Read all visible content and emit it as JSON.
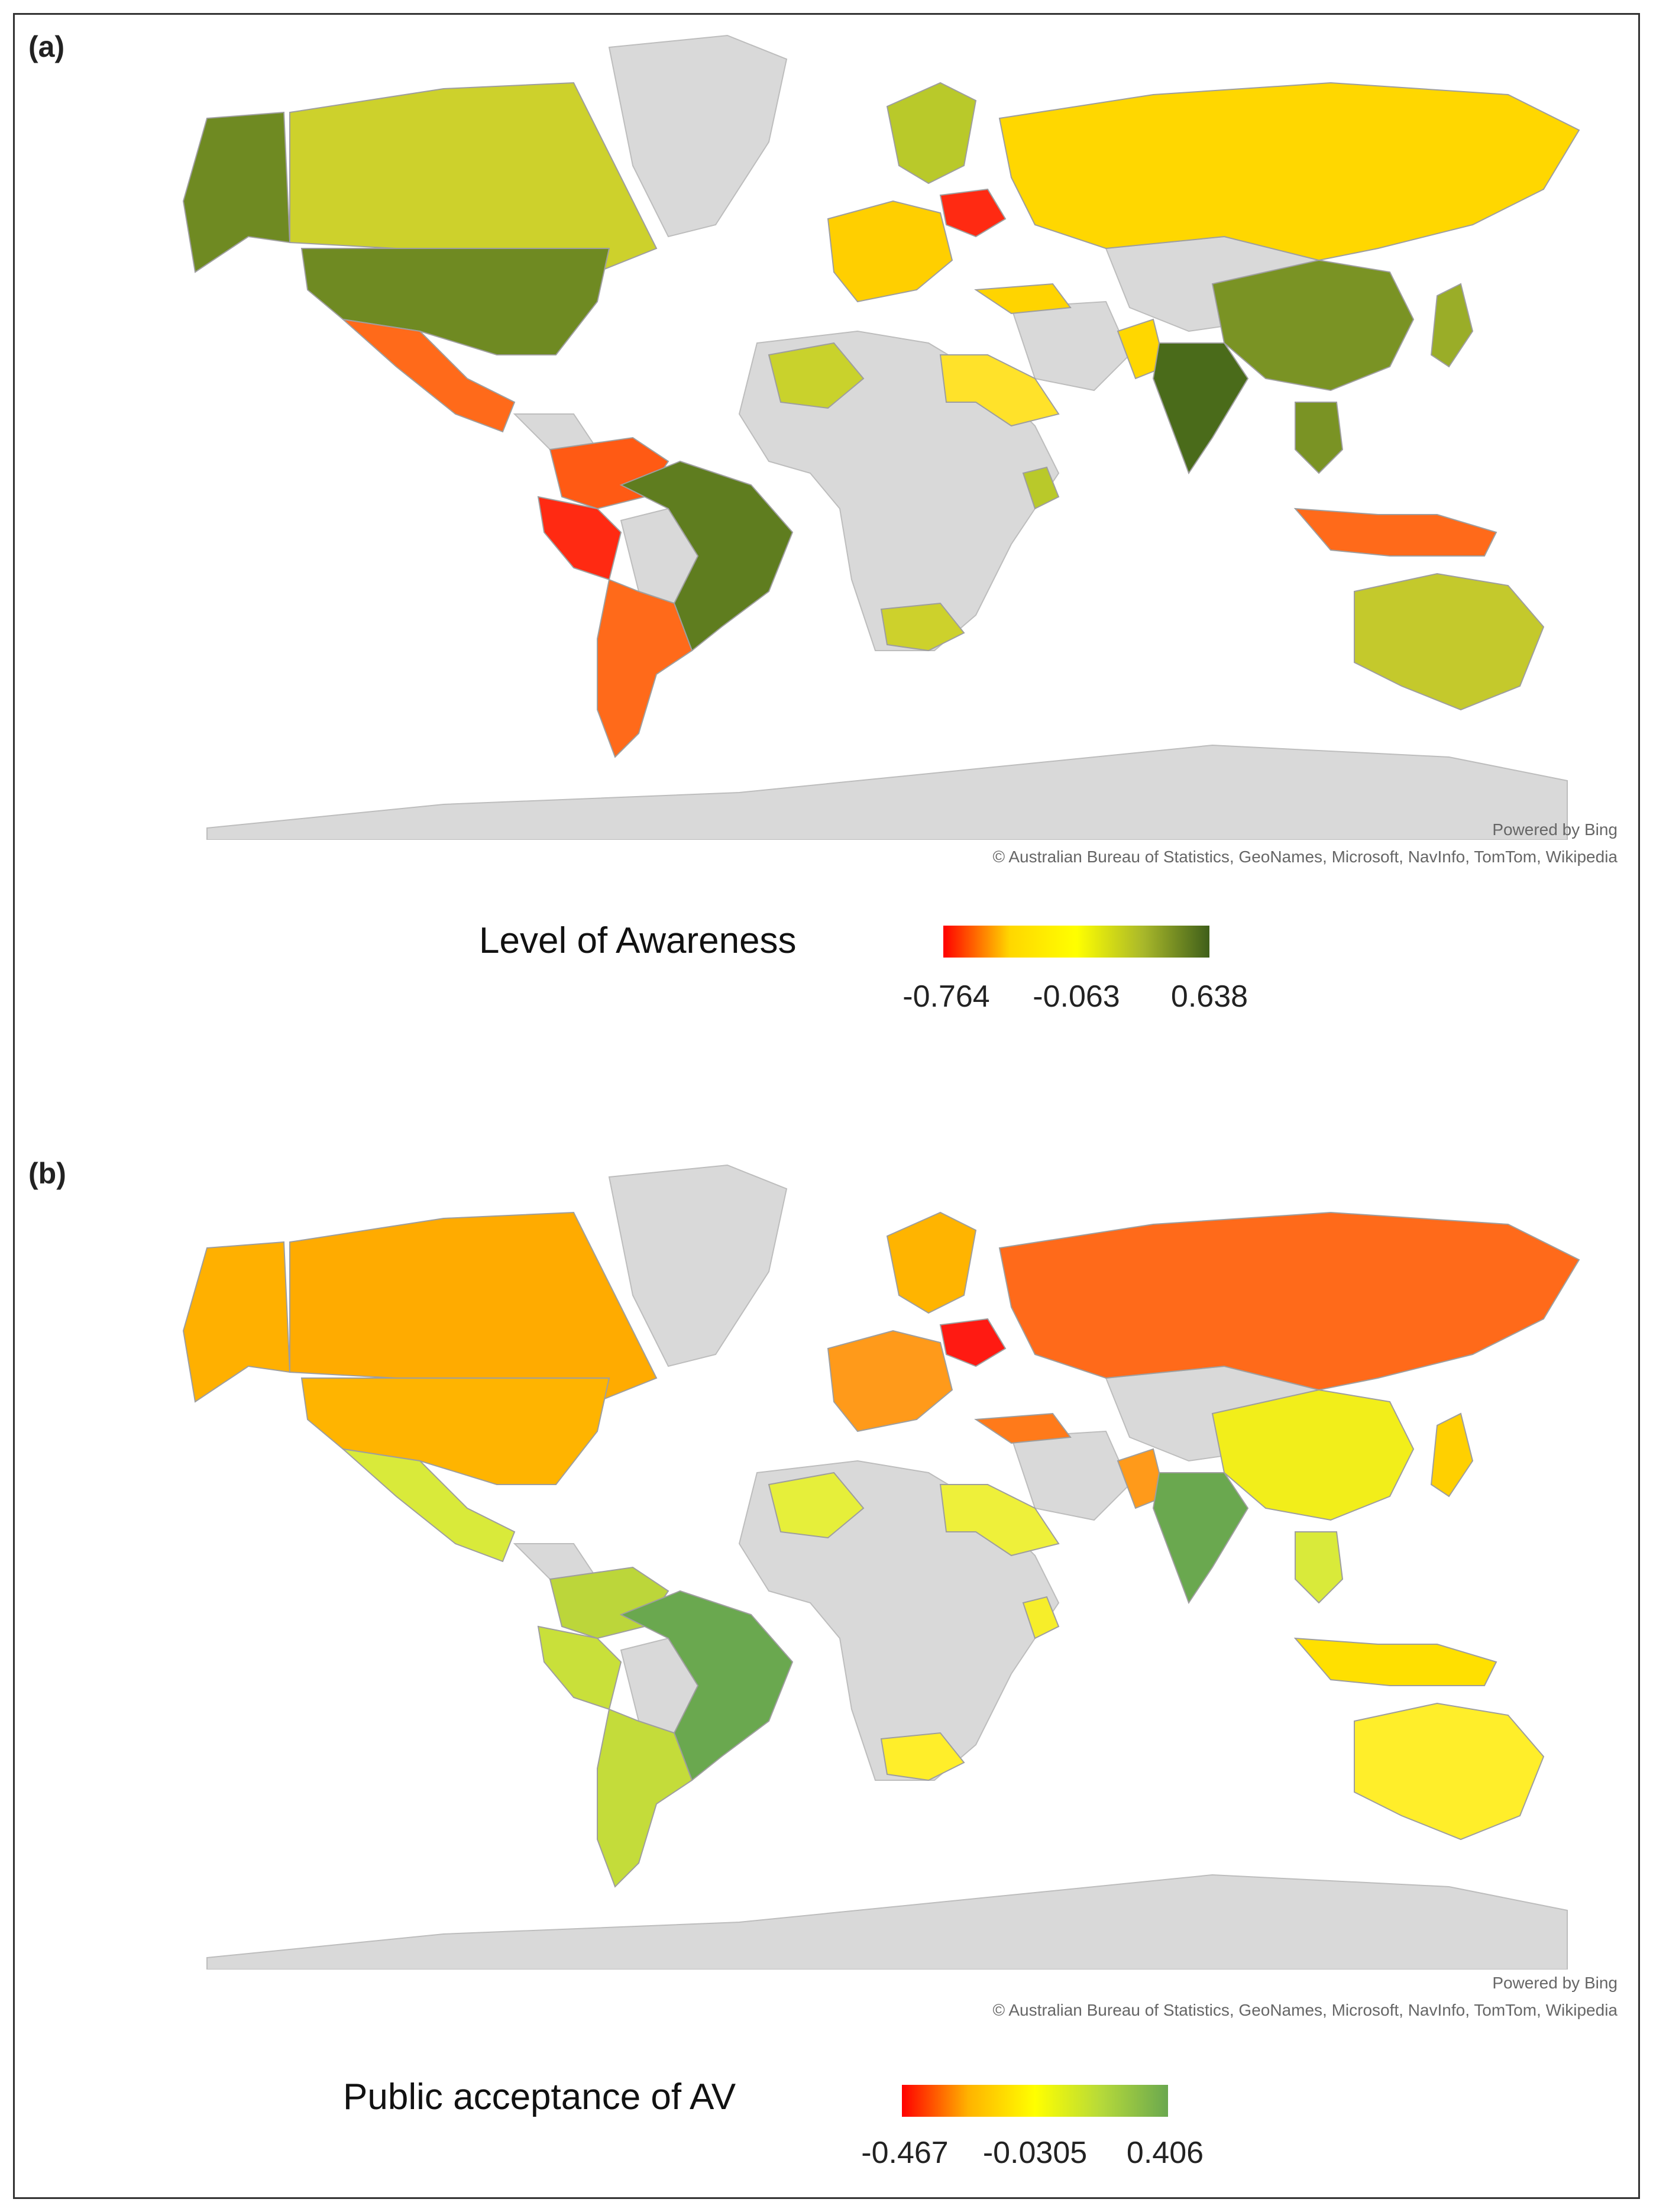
{
  "panels": [
    {
      "label": "(a)",
      "credit_line1": "Powered by Bing",
      "credit_line2": "© Australian Bureau of Statistics, GeoNames, Microsoft, NavInfo, TomTom, Wikipedia",
      "legend": {
        "title": "Level of Awareness",
        "min": "-0.764",
        "mid": "-0.063",
        "max": "0.638",
        "colors": [
          "#ff0000",
          "#ffd700",
          "#ffff00",
          "#a9b82a",
          "#3f5f1a"
        ]
      },
      "no_data_color": "#d9d9d9",
      "regions": [
        {
          "name": "alaska",
          "color": "#6f8a22"
        },
        {
          "name": "canada",
          "color": "#cdd12c"
        },
        {
          "name": "usa",
          "color": "#6f8a22"
        },
        {
          "name": "mexico",
          "color": "#ff6a1a"
        },
        {
          "name": "colombia-venezuela",
          "color": "#ff5a14"
        },
        {
          "name": "peru-ecuador",
          "color": "#ff2a12"
        },
        {
          "name": "brazil",
          "color": "#5f7d1f"
        },
        {
          "name": "argentina-chile",
          "color": "#ff6a1a"
        },
        {
          "name": "western-europe",
          "color": "#ffcf00"
        },
        {
          "name": "scandinavia",
          "color": "#b9c92a"
        },
        {
          "name": "poland",
          "color": "#ff2a12"
        },
        {
          "name": "russia",
          "color": "#ffd700"
        },
        {
          "name": "turkey",
          "color": "#ffd400"
        },
        {
          "name": "north-africa",
          "color": "#c9d22c"
        },
        {
          "name": "egypt-saudi",
          "color": "#ffe22a"
        },
        {
          "name": "kenya",
          "color": "#b9c92a"
        },
        {
          "name": "south-africa",
          "color": "#cdd12c"
        },
        {
          "name": "pakistan",
          "color": "#ffd700"
        },
        {
          "name": "india",
          "color": "#4a6b1a"
        },
        {
          "name": "china",
          "color": "#7a9324"
        },
        {
          "name": "japan",
          "color": "#9aad28"
        },
        {
          "name": "southeast-asia",
          "color": "#7a9324"
        },
        {
          "name": "indonesia",
          "color": "#ff6a1a"
        },
        {
          "name": "australia",
          "color": "#c4c92c"
        }
      ]
    },
    {
      "label": "(b)",
      "credit_line1": "Powered by Bing",
      "credit_line2": "© Australian Bureau of Statistics, GeoNames, Microsoft, NavInfo, TomTom, Wikipedia",
      "legend": {
        "title": "Public acceptance of AV",
        "min": "-0.467",
        "mid": "-0.0305",
        "max": "0.406",
        "colors": [
          "#ff0000",
          "#ffb300",
          "#ffff00",
          "#b5d93a",
          "#6aa84f"
        ]
      },
      "no_data_color": "#d9d9d9",
      "regions": [
        {
          "name": "alaska",
          "color": "#ffb000"
        },
        {
          "name": "canada",
          "color": "#ffab00"
        },
        {
          "name": "usa",
          "color": "#ffb400"
        },
        {
          "name": "mexico",
          "color": "#d9ea3a"
        },
        {
          "name": "colombia-venezuela",
          "color": "#bcd63a"
        },
        {
          "name": "peru-ecuador",
          "color": "#c9e03a"
        },
        {
          "name": "brazil",
          "color": "#6aa84f"
        },
        {
          "name": "argentina-chile",
          "color": "#c4dc3a"
        },
        {
          "name": "western-europe",
          "color": "#ff9a1a"
        },
        {
          "name": "scandinavia",
          "color": "#ffb400"
        },
        {
          "name": "poland",
          "color": "#ff1a12"
        },
        {
          "name": "russia",
          "color": "#ff6a1a"
        },
        {
          "name": "turkey",
          "color": "#ff7a1a"
        },
        {
          "name": "north-africa",
          "color": "#e6ef3a"
        },
        {
          "name": "egypt-saudi",
          "color": "#eef03a"
        },
        {
          "name": "kenya",
          "color": "#f6ee2a"
        },
        {
          "name": "south-africa",
          "color": "#ffee2a"
        },
        {
          "name": "pakistan",
          "color": "#ff9a1a"
        },
        {
          "name": "india",
          "color": "#6aa84f"
        },
        {
          "name": "china",
          "color": "#f2ee1a"
        },
        {
          "name": "japan",
          "color": "#ffd000"
        },
        {
          "name": "southeast-asia",
          "color": "#d9ea3a"
        },
        {
          "name": "indonesia",
          "color": "#ffe000"
        },
        {
          "name": "australia",
          "color": "#ffee2a"
        }
      ]
    }
  ]
}
